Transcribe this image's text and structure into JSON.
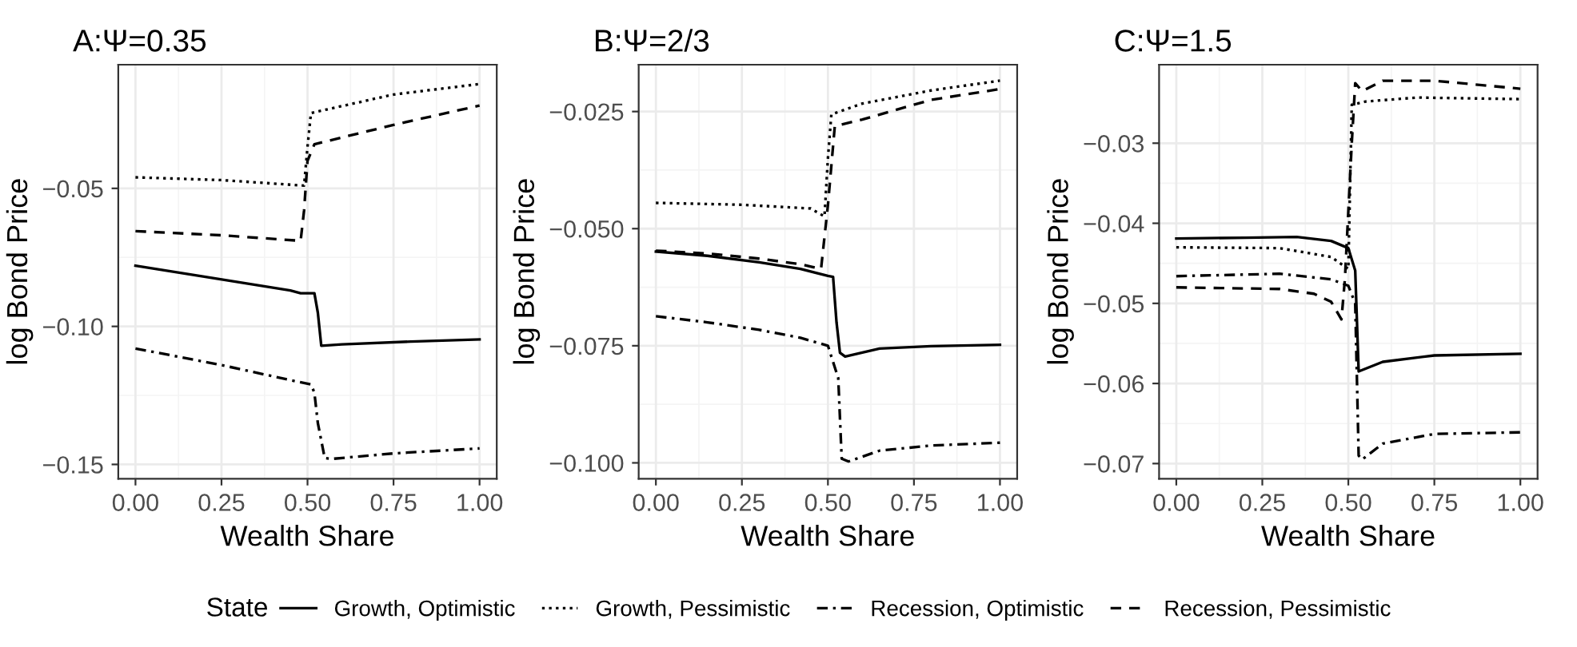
{
  "chart_data": [
    {
      "type": "line",
      "title": "A:Ψ=0.35",
      "xlabel": "Wealth Share",
      "ylabel": "log Bond Price",
      "xlim": [
        -0.05,
        1.05
      ],
      "xticks": [
        {
          "value": 0,
          "label": "0.00"
        },
        {
          "value": 0.25,
          "label": "0.25"
        },
        {
          "value": 0.5,
          "label": "0.50"
        },
        {
          "value": 0.75,
          "label": "0.75"
        },
        {
          "value": 1,
          "label": "1.00"
        }
      ],
      "ylim": [
        -0.1552,
        -0.0052
      ],
      "yticks": [
        {
          "value": -0.05,
          "label": "−0.05"
        },
        {
          "value": -0.1,
          "label": "−0.10"
        },
        {
          "value": -0.15,
          "label": "−0.15"
        }
      ],
      "grid": true,
      "legend": "bottom",
      "legend_title": "State",
      "series": [
        {
          "name": "Growth, Optimistic",
          "color": "#000000",
          "line_style": "solid",
          "x": [
            0,
            0.2,
            0.45,
            0.48,
            0.52,
            0.53,
            0.54,
            0.6,
            0.8,
            1.0
          ],
          "values": [
            -0.078,
            -0.082,
            -0.087,
            -0.088,
            -0.088,
            -0.095,
            -0.107,
            -0.1065,
            -0.1055,
            -0.1047
          ]
        },
        {
          "name": "Growth, Pessimistic",
          "color": "#000000",
          "line_style": "dotted",
          "x": [
            0,
            0.25,
            0.49,
            0.5,
            0.51,
            0.75,
            1.0
          ],
          "values": [
            -0.046,
            -0.047,
            -0.049,
            -0.035,
            -0.0227,
            -0.016,
            -0.0122
          ]
        },
        {
          "name": "Recession, Optimistic",
          "color": "#000000",
          "line_style": "dashdot",
          "x": [
            0,
            0.25,
            0.47,
            0.51,
            0.52,
            0.53,
            0.55,
            0.57,
            0.75,
            1.0
          ],
          "values": [
            -0.108,
            -0.114,
            -0.12,
            -0.121,
            -0.124,
            -0.135,
            -0.1477,
            -0.148,
            -0.146,
            -0.1442
          ]
        },
        {
          "name": "Recession, Pessimistic",
          "color": "#000000",
          "line_style": "dashed",
          "x": [
            0,
            0.25,
            0.48,
            0.49,
            0.5,
            0.52,
            0.75,
            1.0
          ],
          "values": [
            -0.0655,
            -0.067,
            -0.069,
            -0.058,
            -0.04,
            -0.034,
            -0.027,
            -0.02
          ]
        }
      ]
    },
    {
      "type": "line",
      "title": "B:Ψ=2/3",
      "xlabel": "Wealth Share",
      "ylabel": "log Bond Price",
      "xlim": [
        -0.05,
        1.05
      ],
      "xticks": [
        {
          "value": 0,
          "label": "0.00"
        },
        {
          "value": 0.25,
          "label": "0.25"
        },
        {
          "value": 0.5,
          "label": "0.50"
        },
        {
          "value": 0.75,
          "label": "0.75"
        },
        {
          "value": 1,
          "label": "1.00"
        }
      ],
      "ylim": [
        -0.1034,
        -0.015
      ],
      "yticks": [
        {
          "value": -0.025,
          "label": "−0.025"
        },
        {
          "value": -0.05,
          "label": "−0.050"
        },
        {
          "value": -0.075,
          "label": "−0.075"
        },
        {
          "value": -0.1,
          "label": "−0.100"
        }
      ],
      "grid": true,
      "series": [
        {
          "color": "#000000",
          "line_style": "solid",
          "x": [
            0,
            0.15,
            0.3,
            0.42,
            0.5,
            0.515,
            0.525,
            0.535,
            0.55,
            0.65,
            0.8,
            1.0
          ],
          "values": [
            -0.0549,
            -0.0558,
            -0.0572,
            -0.0586,
            -0.0601,
            -0.0603,
            -0.07,
            -0.0765,
            -0.0773,
            -0.0756,
            -0.0751,
            -0.0748
          ]
        },
        {
          "color": "#000000",
          "line_style": "dotted",
          "x": [
            0,
            0.25,
            0.45,
            0.49,
            0.5,
            0.51,
            0.6,
            0.8,
            1.0
          ],
          "values": [
            -0.0445,
            -0.0449,
            -0.0457,
            -0.0474,
            -0.035,
            -0.0256,
            -0.0233,
            -0.0205,
            -0.0184
          ]
        },
        {
          "color": "#000000",
          "line_style": "dashdot",
          "x": [
            0,
            0.15,
            0.3,
            0.42,
            0.5,
            0.53,
            0.54,
            0.56,
            0.65,
            0.8,
            1.0
          ],
          "values": [
            -0.0687,
            -0.07,
            -0.0716,
            -0.0733,
            -0.075,
            -0.0819,
            -0.0991,
            -0.0997,
            -0.0974,
            -0.0963,
            -0.0957
          ]
        },
        {
          "color": "#000000",
          "line_style": "dashed",
          "x": [
            0,
            0.15,
            0.3,
            0.42,
            0.48,
            0.5,
            0.52,
            0.6,
            0.8,
            1.0
          ],
          "values": [
            -0.0547,
            -0.0553,
            -0.0564,
            -0.0576,
            -0.0586,
            -0.045,
            -0.0281,
            -0.0267,
            -0.0225,
            -0.0202
          ]
        }
      ]
    },
    {
      "type": "line",
      "title": "C:Ψ=1.5",
      "xlabel": "Wealth Share",
      "ylabel": "log Bond Price",
      "xlim": [
        -0.05,
        1.05
      ],
      "xticks": [
        {
          "value": 0,
          "label": "0.00"
        },
        {
          "value": 0.25,
          "label": "0.25"
        },
        {
          "value": 0.5,
          "label": "0.50"
        },
        {
          "value": 0.75,
          "label": "0.75"
        },
        {
          "value": 1,
          "label": "1.00"
        }
      ],
      "ylim": [
        -0.0719,
        -0.0202
      ],
      "yticks": [
        {
          "value": -0.03,
          "label": "−0.03"
        },
        {
          "value": -0.04,
          "label": "−0.04"
        },
        {
          "value": -0.05,
          "label": "−0.05"
        },
        {
          "value": -0.06,
          "label": "−0.06"
        },
        {
          "value": -0.07,
          "label": "−0.07"
        }
      ],
      "grid": true,
      "series": [
        {
          "color": "#000000",
          "line_style": "solid",
          "x": [
            0,
            0.2,
            0.35,
            0.45,
            0.5,
            0.52,
            0.53,
            0.6,
            0.75,
            1.0
          ],
          "values": [
            -0.0419,
            -0.0418,
            -0.0417,
            -0.0422,
            -0.0431,
            -0.0459,
            -0.0585,
            -0.0573,
            -0.0565,
            -0.0563
          ]
        },
        {
          "color": "#000000",
          "line_style": "dotted",
          "x": [
            0,
            0.3,
            0.45,
            0.5,
            0.51,
            0.55,
            0.7,
            1.0
          ],
          "values": [
            -0.043,
            -0.0431,
            -0.0442,
            -0.0457,
            -0.0252,
            -0.0248,
            -0.0243,
            -0.0245
          ]
        },
        {
          "color": "#000000",
          "line_style": "dashdot",
          "x": [
            0,
            0.3,
            0.45,
            0.5,
            0.52,
            0.53,
            0.54,
            0.6,
            0.75,
            1.0
          ],
          "values": [
            -0.0466,
            -0.0463,
            -0.047,
            -0.0478,
            -0.05,
            -0.069,
            -0.0695,
            -0.0675,
            -0.0663,
            -0.0661
          ]
        },
        {
          "color": "#000000",
          "line_style": "dashed",
          "x": [
            0,
            0.3,
            0.4,
            0.45,
            0.48,
            0.49,
            0.51,
            0.52,
            0.54,
            0.6,
            0.75,
            1.0
          ],
          "values": [
            -0.048,
            -0.0482,
            -0.0488,
            -0.0498,
            -0.052,
            -0.047,
            -0.03,
            -0.0225,
            -0.0235,
            -0.0222,
            -0.0222,
            -0.0232
          ]
        }
      ]
    }
  ]
}
